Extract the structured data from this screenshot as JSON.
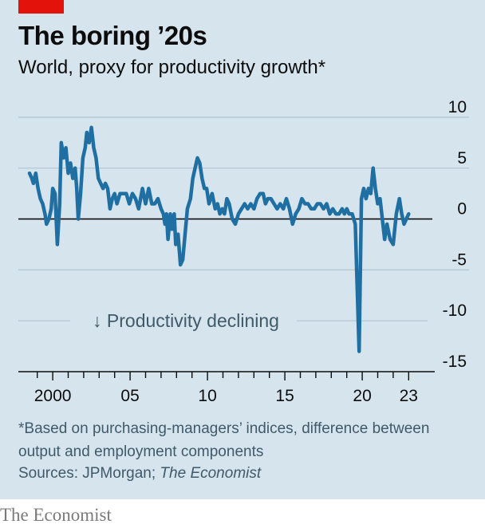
{
  "header": {
    "title": "The boring ’20s",
    "subtitle": "World, proxy for productivity growth*"
  },
  "footnote": "*Based on purchasing-managers’ indices, difference between output and employment components",
  "sources": {
    "prefix": "Sources: JPMorgan; ",
    "italic": "The Economist"
  },
  "brand": "The Economist",
  "colors": {
    "line": "#1f6fa3",
    "panel": "#d6e4ed",
    "brand_red": "#e3120b"
  },
  "chart_data": {
    "type": "line",
    "title": "The boring ’20s",
    "subtitle": "World, proxy for productivity growth*",
    "ylim": [
      -15,
      10
    ],
    "y_ticks": [
      10,
      5,
      0,
      -5,
      -10,
      -15
    ],
    "y_tick_labels": [
      "10",
      "5",
      "0",
      "-5",
      "-10",
      "-15"
    ],
    "x_range": [
      1998.5,
      2023.5
    ],
    "x_tick_labels": [
      {
        "x": 2000,
        "label": "2000"
      },
      {
        "x": 2005,
        "label": "05"
      },
      {
        "x": 2010,
        "label": "10"
      },
      {
        "x": 2015,
        "label": "15"
      },
      {
        "x": 2020,
        "label": "20"
      },
      {
        "x": 2023,
        "label": "23"
      }
    ],
    "annotation": {
      "text": "↓ Productivity declining",
      "y": -10
    },
    "series": [
      {
        "values": [
          [
            1998.5,
            4.5
          ],
          [
            1998.65,
            4.0
          ],
          [
            1998.75,
            3.5
          ],
          [
            1998.9,
            4.5
          ],
          [
            1999.05,
            3.0
          ],
          [
            1999.2,
            2.0
          ],
          [
            1999.35,
            1.5
          ],
          [
            1999.5,
            0.5
          ],
          [
            1999.6,
            -0.5
          ],
          [
            1999.75,
            0.0
          ],
          [
            1999.9,
            1.0
          ],
          [
            2000.0,
            3.0
          ],
          [
            2000.15,
            2.5
          ],
          [
            2000.3,
            -2.5
          ],
          [
            2000.45,
            1.5
          ],
          [
            2000.55,
            7.5
          ],
          [
            2000.7,
            6.0
          ],
          [
            2000.85,
            7.0
          ],
          [
            2001.0,
            4.5
          ],
          [
            2001.15,
            5.5
          ],
          [
            2001.3,
            4.0
          ],
          [
            2001.45,
            5.0
          ],
          [
            2001.55,
            3.0
          ],
          [
            2001.65,
            0.0
          ],
          [
            2001.8,
            2.5
          ],
          [
            2001.95,
            6.0
          ],
          [
            2002.1,
            7.0
          ],
          [
            2002.2,
            8.5
          ],
          [
            2002.35,
            7.5
          ],
          [
            2002.5,
            9.0
          ],
          [
            2002.65,
            7.0
          ],
          [
            2002.8,
            6.0
          ],
          [
            2002.95,
            4.0
          ],
          [
            2003.1,
            3.5
          ],
          [
            2003.25,
            3.0
          ],
          [
            2003.4,
            3.5
          ],
          [
            2003.55,
            3.0
          ],
          [
            2003.7,
            1.0
          ],
          [
            2003.85,
            2.0
          ],
          [
            2004.0,
            2.5
          ],
          [
            2004.15,
            1.5
          ],
          [
            2004.35,
            2.5
          ],
          [
            2004.55,
            2.5
          ],
          [
            2004.75,
            2.5
          ],
          [
            2004.95,
            1.5
          ],
          [
            2005.15,
            2.5
          ],
          [
            2005.35,
            2.0
          ],
          [
            2005.55,
            1.0
          ],
          [
            2005.8,
            3.0
          ],
          [
            2006.0,
            1.5
          ],
          [
            2006.2,
            3.0
          ],
          [
            2006.4,
            1.5
          ],
          [
            2006.6,
            1.5
          ],
          [
            2006.8,
            2.0
          ],
          [
            2007.0,
            1.0
          ],
          [
            2007.15,
            0.5
          ],
          [
            2007.25,
            -0.5
          ],
          [
            2007.35,
            0.5
          ],
          [
            2007.45,
            -2.0
          ],
          [
            2007.6,
            0.5
          ],
          [
            2007.7,
            -1.0
          ],
          [
            2007.85,
            0.5
          ],
          [
            2007.95,
            -2.5
          ],
          [
            2008.1,
            -1.5
          ],
          [
            2008.25,
            -4.5
          ],
          [
            2008.4,
            -4.0
          ],
          [
            2008.55,
            -1.5
          ],
          [
            2008.7,
            1.0
          ],
          [
            2008.9,
            2.0
          ],
          [
            2009.05,
            4.0
          ],
          [
            2009.2,
            5.0
          ],
          [
            2009.35,
            6.0
          ],
          [
            2009.5,
            5.5
          ],
          [
            2009.65,
            4.0
          ],
          [
            2009.8,
            3.0
          ],
          [
            2009.95,
            3.0
          ],
          [
            2010.1,
            1.5
          ],
          [
            2010.3,
            2.5
          ],
          [
            2010.5,
            1.0
          ],
          [
            2010.65,
            1.5
          ],
          [
            2010.8,
            0.5
          ],
          [
            2010.95,
            1.0
          ],
          [
            2011.1,
            0.5
          ],
          [
            2011.25,
            2.0
          ],
          [
            2011.4,
            1.5
          ],
          [
            2011.6,
            0.0
          ],
          [
            2011.8,
            -0.5
          ],
          [
            2012.0,
            0.5
          ],
          [
            2012.2,
            1.0
          ],
          [
            2012.4,
            1.5
          ],
          [
            2012.6,
            1.0
          ],
          [
            2012.8,
            1.5
          ],
          [
            2013.0,
            1.0
          ],
          [
            2013.2,
            2.0
          ],
          [
            2013.4,
            2.5
          ],
          [
            2013.6,
            2.5
          ],
          [
            2013.75,
            1.5
          ],
          [
            2013.9,
            2.0
          ],
          [
            2014.1,
            2.0
          ],
          [
            2014.3,
            1.5
          ],
          [
            2014.5,
            1.0
          ],
          [
            2014.7,
            1.5
          ],
          [
            2014.9,
            1.0
          ],
          [
            2015.1,
            2.0
          ],
          [
            2015.3,
            1.0
          ],
          [
            2015.5,
            -0.5
          ],
          [
            2015.7,
            0.5
          ],
          [
            2015.9,
            1.0
          ],
          [
            2016.1,
            2.0
          ],
          [
            2016.3,
            1.5
          ],
          [
            2016.5,
            1.5
          ],
          [
            2016.7,
            1.0
          ],
          [
            2016.9,
            1.0
          ],
          [
            2017.1,
            1.5
          ],
          [
            2017.3,
            1.5
          ],
          [
            2017.5,
            1.0
          ],
          [
            2017.7,
            1.5
          ],
          [
            2017.9,
            0.5
          ],
          [
            2018.1,
            1.0
          ],
          [
            2018.3,
            0.5
          ],
          [
            2018.5,
            0.5
          ],
          [
            2018.7,
            1.0
          ],
          [
            2018.85,
            0.5
          ],
          [
            2019.0,
            1.0
          ],
          [
            2019.15,
            0.5
          ],
          [
            2019.35,
            0.5
          ],
          [
            2019.55,
            -0.5
          ],
          [
            2019.8,
            -13.0
          ],
          [
            2019.95,
            2.0
          ],
          [
            2020.1,
            3.0
          ],
          [
            2020.25,
            2.0
          ],
          [
            2020.4,
            3.0
          ],
          [
            2020.55,
            2.5
          ],
          [
            2020.7,
            5.0
          ],
          [
            2020.85,
            3.0
          ],
          [
            2021.0,
            1.5
          ],
          [
            2021.15,
            2.0
          ],
          [
            2021.3,
            0.0
          ],
          [
            2021.45,
            -2.0
          ],
          [
            2021.6,
            -0.5
          ],
          [
            2021.8,
            -2.0
          ],
          [
            2022.0,
            -2.5
          ],
          [
            2022.2,
            0.5
          ],
          [
            2022.4,
            2.0
          ],
          [
            2022.55,
            0.5
          ],
          [
            2022.7,
            -0.5
          ],
          [
            2022.85,
            0.0
          ],
          [
            2023.0,
            0.5
          ]
        ]
      }
    ]
  }
}
